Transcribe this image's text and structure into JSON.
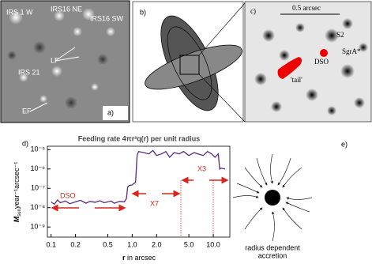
{
  "panels": {
    "a": {
      "label": "a)",
      "annotations": [
        "IRS 1 W",
        "IRS16 NE",
        "IRS16 SW",
        "IRS 21",
        "LF",
        "EF"
      ]
    },
    "b": {
      "label": "b)"
    },
    "c": {
      "label": "c)",
      "scale": "0.5 arcsec",
      "annotations": [
        "S2",
        "SgrA*",
        "DSO",
        "'tail'"
      ]
    },
    "e": {
      "label": "e)",
      "caption": [
        "radius dependent",
        "accretion"
      ]
    }
  },
  "chart_data": {
    "type": "line",
    "panel_label": "d)",
    "title": "Feeding rate 4πr²q(r) per unit radius",
    "y_label": {
      "symbol": "M",
      "subscript": "sun",
      "rest": "year⁻¹arcsec⁻¹"
    },
    "x_label": {
      "symbol": "r",
      "rest": "in arcsec"
    },
    "annotations": [
      "DSO",
      "X7",
      "X3"
    ],
    "log_x": true,
    "log_y": true,
    "xlim": [
      0.09,
      16
    ],
    "ylim": [
      3e-10,
      1.5e-05
    ],
    "xticks": [
      0.1,
      0.2,
      0.5,
      {
        "value": 1,
        "label": "1.0"
      },
      {
        "value": 2,
        "label": "2.0"
      },
      {
        "value": 5,
        "label": "5.0"
      },
      {
        "value": 10,
        "label": "10.0"
      }
    ],
    "yticks": [
      {
        "value": 1e-09,
        "label": "10⁻⁹"
      },
      {
        "value": 1e-08,
        "label": "10⁻⁸"
      },
      {
        "value": 1e-07,
        "label": "10⁻⁷"
      },
      {
        "value": 1e-06,
        "label": "10⁻⁶"
      },
      {
        "value": 1e-05,
        "label": "10⁻⁵"
      }
    ],
    "x": [
      0.1,
      0.11,
      0.12,
      0.13,
      0.15,
      0.17,
      0.2,
      0.23,
      0.27,
      0.3,
      0.35,
      0.4,
      0.45,
      0.5,
      0.55,
      0.6,
      0.7,
      0.8,
      0.85,
      0.88,
      0.92,
      1.0,
      1.05,
      1.1,
      1.15,
      1.2,
      1.4,
      1.6,
      1.8,
      2.0,
      2.3,
      2.6,
      2.9,
      3.3,
      3.8,
      4.3,
      5.0,
      5.8,
      6.5,
      7.5,
      8.5,
      9.5,
      10.5,
      11.5,
      12.0,
      12.5,
      14.0
    ],
    "series": [
      {
        "color": "#5a2a82",
        "values": [
          2e-08,
          1.5e-08,
          2.5e-08,
          1.8e-08,
          2.2e-08,
          1.6e-08,
          2e-08,
          2.4e-08,
          1.7e-08,
          2.1e-08,
          1.9e-08,
          2.3e-08,
          1.8e-08,
          2e-08,
          2.2e-08,
          1.7e-08,
          2.1e-08,
          2e-08,
          3e-08,
          1.2e-07,
          1.4e-07,
          1.5e-07,
          1.8e-07,
          2e-07,
          5e-06,
          8e-06,
          7e-06,
          6e-06,
          9e-06,
          5e-06,
          6e-06,
          8e-06,
          4e-06,
          7e-06,
          6e-06,
          8e-06,
          5e-06,
          7e-06,
          6e-06,
          5e-06,
          8e-06,
          6e-06,
          4e-06,
          6e-06,
          1e-06,
          1.1e-06,
          1e-06
        ]
      }
    ]
  }
}
